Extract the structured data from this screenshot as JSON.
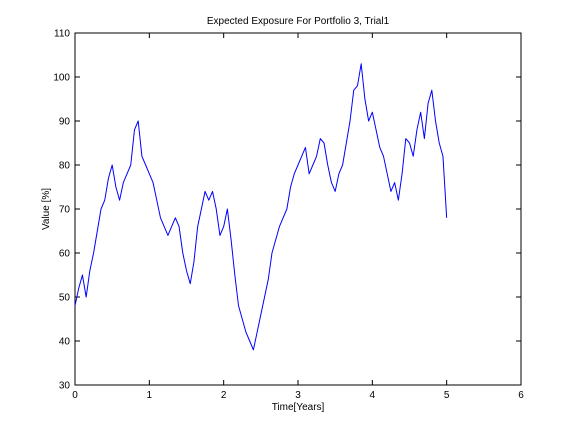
{
  "chart_data": {
    "type": "line",
    "title": "Expected Exposure For Portfolio 3, Trial1",
    "xlabel": "Time[Years]",
    "ylabel": "Value [%]",
    "xlim": [
      0,
      6
    ],
    "ylim": [
      30,
      110
    ],
    "xticks": [
      0,
      1,
      2,
      3,
      4,
      5,
      6
    ],
    "yticks": [
      30,
      40,
      50,
      60,
      70,
      80,
      90,
      100,
      110
    ],
    "grid": false,
    "legend": "none",
    "series_color": "#0000ff",
    "series": [
      {
        "x": [
          0.0,
          0.05,
          0.1,
          0.15,
          0.2,
          0.25,
          0.3,
          0.35,
          0.4,
          0.45,
          0.5,
          0.55,
          0.6,
          0.65,
          0.7,
          0.75,
          0.8,
          0.85,
          0.9,
          0.95,
          1.0,
          1.05,
          1.1,
          1.15,
          1.2,
          1.25,
          1.3,
          1.35,
          1.4,
          1.45,
          1.5,
          1.55,
          1.6,
          1.65,
          1.7,
          1.75,
          1.8,
          1.85,
          1.9,
          1.95,
          2.0,
          2.05,
          2.1,
          2.15,
          2.2,
          2.25,
          2.3,
          2.35,
          2.4,
          2.45,
          2.5,
          2.55,
          2.6,
          2.65,
          2.7,
          2.75,
          2.8,
          2.85,
          2.9,
          2.95,
          3.0,
          3.05,
          3.1,
          3.15,
          3.2,
          3.25,
          3.3,
          3.35,
          3.4,
          3.45,
          3.5,
          3.55,
          3.6,
          3.65,
          3.7,
          3.75,
          3.8,
          3.85,
          3.9,
          3.95,
          4.0,
          4.05,
          4.1,
          4.15,
          4.2,
          4.25,
          4.3,
          4.35,
          4.4,
          4.45,
          4.5,
          4.55,
          4.6,
          4.65,
          4.7,
          4.75,
          4.8,
          4.85,
          4.9,
          4.95,
          5.0
        ],
        "y": [
          48,
          52,
          55,
          50,
          56,
          60,
          65,
          70,
          72,
          77,
          80,
          75,
          72,
          76,
          78,
          80,
          88,
          90,
          82,
          80,
          78,
          76,
          72,
          68,
          66,
          64,
          66,
          68,
          66,
          60,
          56,
          53,
          58,
          66,
          70,
          74,
          72,
          74,
          70,
          64,
          66,
          70,
          63,
          55,
          48,
          45,
          42,
          40,
          38,
          42,
          46,
          50,
          54,
          60,
          63,
          66,
          68,
          70,
          75,
          78,
          80,
          82,
          84,
          78,
          80,
          82,
          86,
          85,
          80,
          76,
          74,
          78,
          80,
          85,
          90,
          97,
          98,
          103,
          95,
          90,
          92,
          88,
          84,
          82,
          78,
          74,
          76,
          72,
          78,
          86,
          85,
          82,
          88,
          92,
          86,
          94,
          97,
          90,
          85,
          82,
          68
        ]
      }
    ]
  }
}
